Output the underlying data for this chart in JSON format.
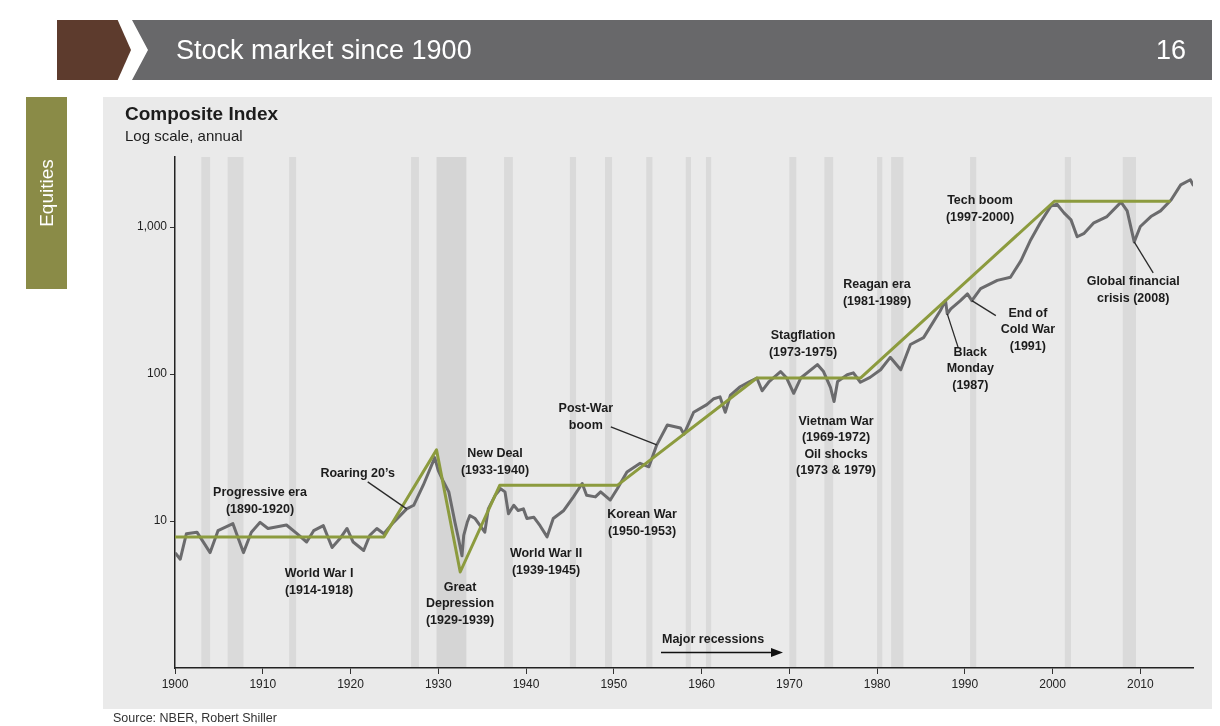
{
  "chart_data": {
    "type": "line",
    "title": "Stock market since 1900",
    "subtitle": "Composite Index",
    "annotations": [
      "Log scale, annual",
      "Major recessions",
      "Equities",
      "16",
      "Source: NBER, Robert Shiller",
      "Progressive era\n(1890-1920)",
      "World War I\n(1914-1918)",
      "Great\nDepression\n(1929-1939)",
      "New Deal\n(1933-1940)",
      "World War II\n(1939-1945)",
      "Korean War\n(1950-1953)",
      "Stagflation\n(1973-1975)",
      "Vietnam War\n(1969-1972)\nOil shocks\n(1973 & 1979)",
      "Reagan era\n(1981-1989)",
      "Tech boom\n(1997-2000)",
      {
        "text": "Roaring 20’s",
        "x": 1926.4,
        "y": 12.1
      },
      {
        "text": "Post-War\nboom",
        "x": 1954.9,
        "y": 33
      },
      {
        "text": "Black\nMonday\n(1987)",
        "x": 1988,
        "y": 257
      },
      {
        "text": "End of\nCold War\n(1991)",
        "x": 1990.8,
        "y": 316
      },
      {
        "text": "Global financial\ncrisis (2008)",
        "x": 2009.3,
        "y": 793
      }
    ],
    "series": [
      {
        "color": "#6b6b6d",
        "x": [
          1900.1,
          1900.6,
          1901.3,
          1902.5,
          1904,
          1904.9,
          1906.6,
          1907.8,
          1908.7,
          1909.7,
          1910.6,
          1912.7,
          1913.9,
          1915,
          1915.8,
          1916.9,
          1917.9,
          1918.8,
          1919.6,
          1920.3,
          1921.5,
          1922.2,
          1923,
          1923.8,
          1924.9,
          1926.4,
          1927.2,
          1928.3,
          1929.6,
          1930,
          1930.6,
          1931.2,
          1931.9,
          1932.3,
          1932.7,
          1932.9,
          1933.3,
          1933.6,
          1934.2,
          1935.3,
          1935.7,
          1936.5,
          1937.1,
          1937.6,
          1938,
          1938.6,
          1939.1,
          1939.7,
          1940.1,
          1940.9,
          1941.6,
          1942.4,
          1943.1,
          1944.3,
          1945.4,
          1946.4,
          1946.9,
          1947.9,
          1948.5,
          1949.6,
          1950.4,
          1951.5,
          1953,
          1954,
          1954.9,
          1956.1,
          1957.6,
          1958,
          1959.1,
          1960.6,
          1961.4,
          1962.1,
          1962.7,
          1963.3,
          1964.4,
          1965.5,
          1966.3,
          1966.9,
          1967.7,
          1969,
          1969.7,
          1970.5,
          1971.3,
          1973.2,
          1973.9,
          1974.7,
          1975.1,
          1975.5,
          1976.6,
          1977.3,
          1978.1,
          1979.2,
          1980.4,
          1981.5,
          1982.7,
          1983.8,
          1985.3,
          1986.5,
          1987.2,
          1987.8,
          1988,
          1988.4,
          1989.5,
          1990.3,
          1990.8,
          1991.8,
          1993.7,
          1995.2,
          1996.4,
          1997.5,
          1998.6,
          1999.8,
          2000.5,
          2001.3,
          2002.1,
          2002.8,
          2003.6,
          2004.7,
          2006.2,
          2007.8,
          2008.5,
          2009.3,
          2010,
          2011.2,
          2012.3,
          2013.5,
          2014.6,
          2015.7,
          2016
        ],
        "values": [
          6,
          5.5,
          8.2,
          8.4,
          6.1,
          8.6,
          9.6,
          6.1,
          8.4,
          9.8,
          8.9,
          9.4,
          8.2,
          7.2,
          8.6,
          9.3,
          6.6,
          7.6,
          8.9,
          7.2,
          6.3,
          8,
          8.9,
          8.2,
          9.8,
          12.1,
          12.8,
          17.6,
          27,
          22,
          18.5,
          15.8,
          9.8,
          7.6,
          5.8,
          8,
          9.8,
          10.9,
          10.4,
          8.4,
          12.1,
          15,
          16.6,
          15.8,
          11.2,
          12.8,
          11.8,
          12.1,
          10.4,
          10.6,
          9.3,
          7.8,
          10.4,
          11.8,
          14.6,
          18,
          15,
          14.6,
          15.8,
          13.9,
          16.6,
          21.6,
          24.7,
          23.4,
          33,
          45,
          43,
          39,
          55,
          62,
          68,
          70,
          55,
          72,
          82,
          89,
          94,
          77,
          89,
          104,
          94,
          74,
          94,
          116,
          104,
          81,
          65,
          89,
          99,
          102,
          88,
          95,
          107,
          130,
          107,
          159,
          177,
          231,
          270,
          316,
          257,
          278,
          316,
          351,
          316,
          381,
          434,
          456,
          592,
          818,
          1070,
          1390,
          1430,
          1250,
          1120,
          860,
          907,
          1070,
          1180,
          1480,
          1290,
          793,
          1010,
          1180,
          1290,
          1530,
          1940,
          2100,
          1940
        ]
      },
      {
        "color": "#8c9b3e",
        "x": [
          1900,
          1923.8,
          1929.8,
          1932.5,
          1937,
          1950.4,
          1966.3,
          1978.1,
          2000.2,
          2013.3
        ],
        "values": [
          7.8,
          7.8,
          30.5,
          4.5,
          17.5,
          17.5,
          94,
          94,
          1500,
          1500
        ]
      }
    ],
    "xlim": [
      1900,
      2016
    ],
    "xticks": [
      1900,
      1910,
      1920,
      1930,
      1940,
      1950,
      1960,
      1970,
      1980,
      1990,
      2000,
      2010
    ],
    "ylim": [
      1,
      3000
    ],
    "yticks": [
      10,
      100,
      {
        "value": 1000,
        "label": "1,000"
      }
    ],
    "log": "y",
    "grid": false,
    "legend": false,
    "marker": "none",
    "bands": [
      {
        "axis": "x",
        "from": 1903,
        "to": 1904,
        "color": "#dadada"
      },
      {
        "axis": "x",
        "from": 1906,
        "to": 1907.8,
        "color": "#dadada"
      },
      {
        "axis": "x",
        "from": 1913,
        "to": 1913.8,
        "color": "#dadada"
      },
      {
        "axis": "x",
        "from": 1926.9,
        "to": 1927.8,
        "color": "#dadada"
      },
      {
        "axis": "x",
        "from": 1929.8,
        "to": 1933.2,
        "color": "#d5d5d5"
      },
      {
        "axis": "x",
        "from": 1937.5,
        "to": 1938.5,
        "color": "#dadada"
      },
      {
        "axis": "x",
        "from": 1945,
        "to": 1945.7,
        "color": "#dadada"
      },
      {
        "axis": "x",
        "from": 1949,
        "to": 1949.8,
        "color": "#dadada"
      },
      {
        "axis": "x",
        "from": 1953.7,
        "to": 1954.4,
        "color": "#dadada"
      },
      {
        "axis": "x",
        "from": 1958.2,
        "to": 1958.8,
        "color": "#dadada"
      },
      {
        "axis": "x",
        "from": 1960.5,
        "to": 1961.1,
        "color": "#dadada"
      },
      {
        "axis": "x",
        "from": 1970,
        "to": 1970.8,
        "color": "#dadada"
      },
      {
        "axis": "x",
        "from": 1974,
        "to": 1975,
        "color": "#dadada"
      },
      {
        "axis": "x",
        "from": 1980,
        "to": 1980.6,
        "color": "#dadada"
      },
      {
        "axis": "x",
        "from": 1981.6,
        "to": 1983,
        "color": "#dadada"
      },
      {
        "axis": "x",
        "from": 1990.6,
        "to": 1991.3,
        "color": "#dadada"
      },
      {
        "axis": "x",
        "from": 2001.4,
        "to": 2002.1,
        "color": "#dadada"
      },
      {
        "axis": "x",
        "from": 2008,
        "to": 2009.5,
        "color": "#dadada"
      }
    ]
  }
}
